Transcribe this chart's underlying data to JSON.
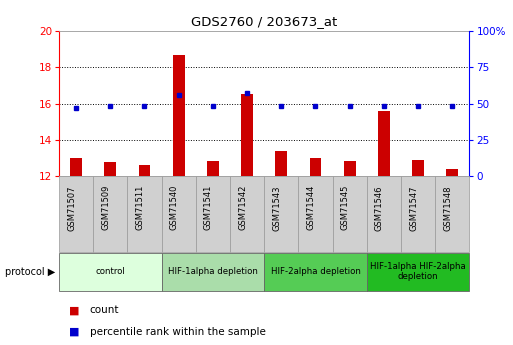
{
  "title": "GDS2760 / 203673_at",
  "samples": [
    "GSM71507",
    "GSM71509",
    "GSM71511",
    "GSM71540",
    "GSM71541",
    "GSM71542",
    "GSM71543",
    "GSM71544",
    "GSM71545",
    "GSM71546",
    "GSM71547",
    "GSM71548"
  ],
  "count_values": [
    13.0,
    12.75,
    12.6,
    18.7,
    12.85,
    16.5,
    13.35,
    13.0,
    12.85,
    15.6,
    12.9,
    12.4
  ],
  "percentile_values": [
    47,
    48,
    48,
    56,
    48,
    57,
    48,
    48,
    48,
    48,
    48,
    48
  ],
  "ylim_left": [
    12,
    20
  ],
  "ylim_right": [
    0,
    100
  ],
  "yticks_left": [
    12,
    14,
    16,
    18,
    20
  ],
  "yticks_right": [
    0,
    25,
    50,
    75,
    100
  ],
  "ytick_labels_right": [
    "0",
    "25",
    "50",
    "75",
    "100%"
  ],
  "bar_color": "#cc0000",
  "dot_color": "#0000cc",
  "protocol_groups": [
    {
      "label": "control",
      "start": 0,
      "end": 2,
      "color": "#ddffdd"
    },
    {
      "label": "HIF-1alpha depletion",
      "start": 3,
      "end": 5,
      "color": "#aaddaa"
    },
    {
      "label": "HIF-2alpha depletion",
      "start": 6,
      "end": 8,
      "color": "#55cc55"
    },
    {
      "label": "HIF-1alpha HIF-2alpha\ndepletion",
      "start": 9,
      "end": 11,
      "color": "#22bb22"
    }
  ],
  "protocol_label": "protocol",
  "legend_count_label": "count",
  "legend_percentile_label": "percentile rank within the sample",
  "background_color": "#ffffff",
  "plot_bg_color": "#ffffff",
  "sample_box_color": "#d0d0d0",
  "bar_width": 0.35
}
